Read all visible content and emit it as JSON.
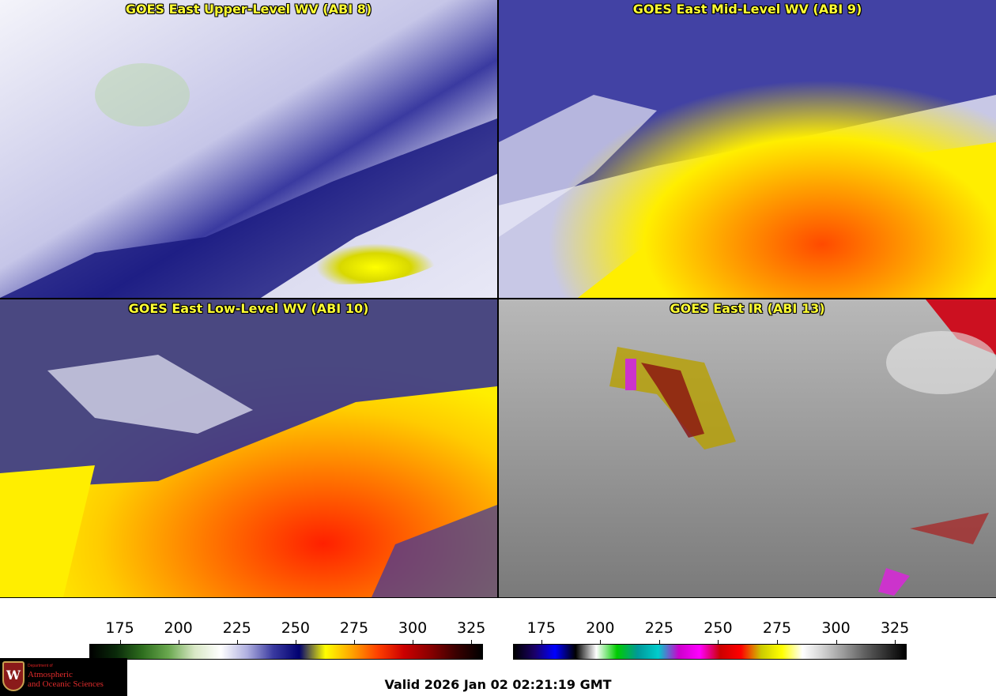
{
  "panels": [
    {
      "title": "GOES East Upper-Level WV (ABI 8)",
      "product": "water-vapor-upper"
    },
    {
      "title": "GOES East Mid-Level WV (ABI 9)",
      "product": "water-vapor-mid"
    },
    {
      "title": "GOES East Low-Level WV (ABI 10)",
      "product": "water-vapor-low"
    },
    {
      "title": "GOES East IR (ABI 13)",
      "product": "infrared"
    }
  ],
  "colorbars": [
    {
      "name": "water-vapor-scale",
      "ticks": [
        "175",
        "200",
        "225",
        "250",
        "275",
        "300",
        "325"
      ],
      "range": [
        162,
        330
      ],
      "colors": [
        "#000000",
        "#0a2a0a",
        "#2e6e1e",
        "#6aa84f",
        "#d9e8c6",
        "#ffffff",
        "#b0b0e0",
        "#3a3aa0",
        "#000070",
        "#ffff00",
        "#ffa500",
        "#ff4000",
        "#cc0000",
        "#8a0000",
        "#3a0000",
        "#000000"
      ]
    },
    {
      "name": "infrared-scale",
      "ticks": [
        "175",
        "200",
        "225",
        "250",
        "275",
        "300",
        "325"
      ],
      "range": [
        163,
        330
      ],
      "colors": [
        "#000000",
        "#1a0066",
        "#0000ff",
        "#000000",
        "#ffffff",
        "#00cc00",
        "#009999",
        "#00cccc",
        "#cc00cc",
        "#ff00ff",
        "#cc0000",
        "#ff0000",
        "#cccc00",
        "#ffff00",
        "#ffffff",
        "#d0d0d0",
        "#999999",
        "#606060",
        "#303030",
        "#000000"
      ]
    }
  ],
  "footer": {
    "valid_text": "Valid 2026 Jan 02 02:21:19 GMT"
  },
  "logo": {
    "dept": "Department of",
    "line1": "Atmospheric",
    "line2": "and Oceanic Sciences",
    "initial": "W"
  }
}
